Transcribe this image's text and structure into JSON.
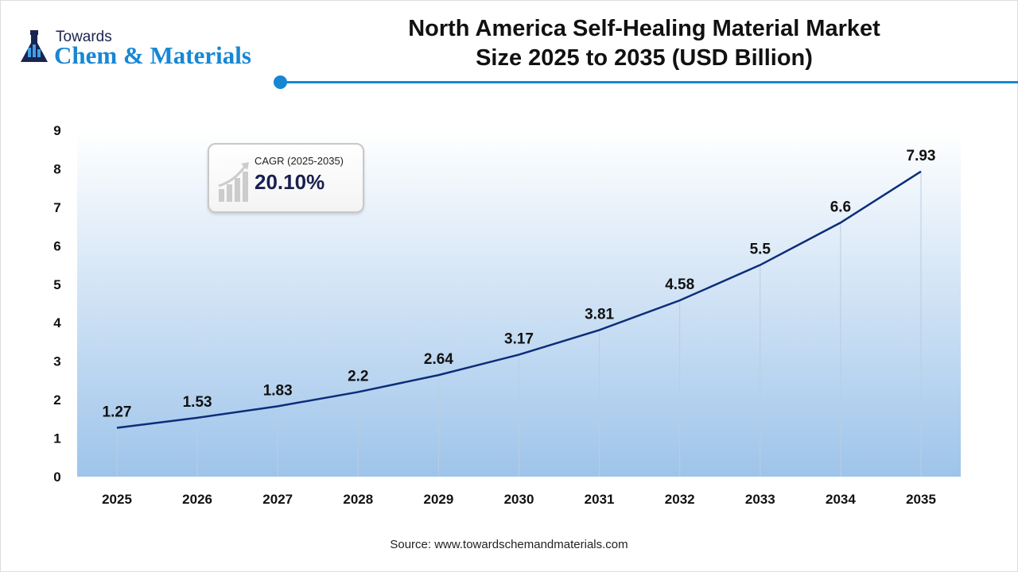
{
  "logo": {
    "towards": "Towards",
    "main": "Chem & Materials"
  },
  "title_line1": "North America Self-Healing Material Market",
  "title_line2": "Size 2025 to 2035 (USD Billion)",
  "cagr": {
    "label": "CAGR (2025-2035)",
    "value": "20.10%",
    "icon": "growth-chart-icon"
  },
  "source": "Source: www.towardschemandmaterials.com",
  "colors": {
    "line": "#0d2d7a",
    "accent": "#1787d4",
    "fill_top": "#ffffff",
    "fill_bottom": "#9ec4ea"
  },
  "chart_data": {
    "type": "area",
    "title": "North America Self-Healing Material Market Size 2025 to 2035 (USD Billion)",
    "categories": [
      "2025",
      "2026",
      "2027",
      "2028",
      "2029",
      "2030",
      "2031",
      "2032",
      "2033",
      "2034",
      "2035"
    ],
    "values": [
      1.27,
      1.53,
      1.83,
      2.2,
      2.64,
      3.17,
      3.81,
      4.58,
      5.5,
      6.6,
      7.93
    ],
    "data_labels": [
      "1.27",
      "1.53",
      "1.83",
      "2.2",
      "2.64",
      "3.17",
      "3.81",
      "4.58",
      "5.5",
      "6.6",
      "7.93"
    ],
    "yticks": [
      "0",
      "1",
      "2",
      "3",
      "4",
      "5",
      "6",
      "7",
      "8",
      "9"
    ],
    "ylim": [
      0,
      9
    ],
    "grid": false,
    "legend": "none"
  }
}
